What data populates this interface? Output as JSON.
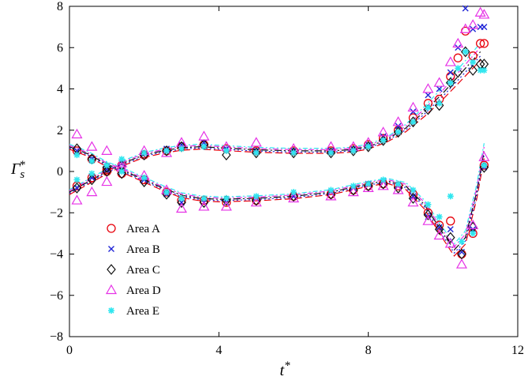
{
  "chart_data": {
    "type": "scatter",
    "title": "",
    "xlabel": "t*",
    "ylabel": "Γs*",
    "xlim": [
      0,
      12
    ],
    "ylim": [
      -8,
      8
    ],
    "xticks": [
      0,
      4,
      8,
      12
    ],
    "yticks": [
      -8,
      -6,
      -4,
      -2,
      0,
      2,
      4,
      6,
      8
    ],
    "grid": false,
    "legend_position": "lower-left",
    "series": [
      {
        "name": "Area A",
        "marker": "circle",
        "color": "#e8000b",
        "upper": [
          [
            0.2,
            -0.7
          ],
          [
            0.6,
            -0.3
          ],
          [
            1.0,
            0.0
          ],
          [
            1.4,
            0.3
          ],
          [
            2.0,
            0.8
          ],
          [
            2.6,
            1.0
          ],
          [
            3.0,
            1.2
          ],
          [
            3.6,
            1.3
          ],
          [
            4.2,
            1.1
          ],
          [
            5.0,
            1.0
          ],
          [
            6.0,
            1.0
          ],
          [
            7.0,
            1.0
          ],
          [
            7.6,
            1.1
          ],
          [
            8.0,
            1.3
          ],
          [
            8.4,
            1.6
          ],
          [
            8.8,
            2.0
          ],
          [
            9.2,
            2.6
          ],
          [
            9.6,
            3.3
          ],
          [
            9.9,
            3.5
          ],
          [
            10.2,
            4.6
          ],
          [
            10.4,
            5.5
          ],
          [
            10.6,
            6.8
          ],
          [
            10.8,
            5.6
          ],
          [
            11.0,
            6.2
          ],
          [
            11.1,
            6.2
          ]
        ],
        "lower": [
          [
            0.2,
            1.0
          ],
          [
            0.6,
            0.6
          ],
          [
            1.0,
            0.1
          ],
          [
            1.4,
            -0.1
          ],
          [
            2.0,
            -0.4
          ],
          [
            2.6,
            -1.0
          ],
          [
            3.0,
            -1.4
          ],
          [
            3.6,
            -1.4
          ],
          [
            4.2,
            -1.5
          ],
          [
            5.0,
            -1.4
          ],
          [
            6.0,
            -1.2
          ],
          [
            7.0,
            -1.1
          ],
          [
            7.6,
            -0.9
          ],
          [
            8.0,
            -0.7
          ],
          [
            8.4,
            -0.6
          ],
          [
            8.8,
            -0.7
          ],
          [
            9.2,
            -1.1
          ],
          [
            9.6,
            -2.0
          ],
          [
            9.9,
            -2.6
          ],
          [
            10.2,
            -2.4
          ],
          [
            10.5,
            -4.0
          ],
          [
            10.8,
            -3.0
          ],
          [
            11.1,
            0.3
          ]
        ]
      },
      {
        "name": "Area B",
        "marker": "x",
        "color": "#1f24d6",
        "upper": [
          [
            0.2,
            -0.8
          ],
          [
            0.6,
            -0.3
          ],
          [
            1.0,
            0.1
          ],
          [
            1.4,
            0.4
          ],
          [
            2.0,
            0.9
          ],
          [
            2.6,
            1.1
          ],
          [
            3.0,
            1.3
          ],
          [
            3.6,
            1.4
          ],
          [
            4.2,
            1.1
          ],
          [
            5.0,
            1.0
          ],
          [
            6.0,
            1.0
          ],
          [
            7.0,
            1.0
          ],
          [
            7.6,
            1.1
          ],
          [
            8.0,
            1.3
          ],
          [
            8.4,
            1.7
          ],
          [
            8.8,
            2.2
          ],
          [
            9.2,
            2.9
          ],
          [
            9.6,
            3.7
          ],
          [
            9.9,
            4.0
          ],
          [
            10.2,
            4.8
          ],
          [
            10.4,
            6.0
          ],
          [
            10.6,
            7.9
          ],
          [
            10.8,
            6.9
          ],
          [
            11.0,
            7.0
          ],
          [
            11.1,
            7.0
          ]
        ],
        "lower": [
          [
            0.2,
            1.0
          ],
          [
            0.6,
            0.6
          ],
          [
            1.0,
            0.2
          ],
          [
            1.4,
            0.0
          ],
          [
            2.0,
            -0.4
          ],
          [
            2.6,
            -1.1
          ],
          [
            3.0,
            -1.5
          ],
          [
            3.6,
            -1.5
          ],
          [
            4.2,
            -1.5
          ],
          [
            5.0,
            -1.3
          ],
          [
            6.0,
            -1.2
          ],
          [
            7.0,
            -1.0
          ],
          [
            7.6,
            -0.8
          ],
          [
            8.0,
            -0.6
          ],
          [
            8.4,
            -0.5
          ],
          [
            8.8,
            -0.7
          ],
          [
            9.2,
            -1.2
          ],
          [
            9.6,
            -2.2
          ],
          [
            9.9,
            -2.7
          ],
          [
            10.2,
            -2.8
          ],
          [
            10.5,
            -3.9
          ],
          [
            10.8,
            -2.8
          ],
          [
            11.1,
            0.2
          ]
        ]
      },
      {
        "name": "Area C",
        "marker": "diamond",
        "color": "#111111",
        "upper": [
          [
            0.2,
            -0.8
          ],
          [
            0.6,
            -0.4
          ],
          [
            1.0,
            0.0
          ],
          [
            1.4,
            0.3
          ],
          [
            2.0,
            0.8
          ],
          [
            2.6,
            1.0
          ],
          [
            3.0,
            1.2
          ],
          [
            3.6,
            1.3
          ],
          [
            4.2,
            0.8
          ],
          [
            5.0,
            0.9
          ],
          [
            6.0,
            0.9
          ],
          [
            7.0,
            0.9
          ],
          [
            7.6,
            1.0
          ],
          [
            8.0,
            1.2
          ],
          [
            8.4,
            1.5
          ],
          [
            8.8,
            1.9
          ],
          [
            9.2,
            2.4
          ],
          [
            9.6,
            3.0
          ],
          [
            9.9,
            3.2
          ],
          [
            10.2,
            4.3
          ],
          [
            10.4,
            4.8
          ],
          [
            10.6,
            5.8
          ],
          [
            10.8,
            4.9
          ],
          [
            11.0,
            5.2
          ],
          [
            11.1,
            5.2
          ]
        ],
        "lower": [
          [
            0.2,
            1.1
          ],
          [
            0.6,
            0.6
          ],
          [
            1.0,
            0.2
          ],
          [
            1.4,
            -0.1
          ],
          [
            2.0,
            -0.5
          ],
          [
            2.6,
            -1.1
          ],
          [
            3.0,
            -1.5
          ],
          [
            3.6,
            -1.5
          ],
          [
            4.2,
            -1.4
          ],
          [
            5.0,
            -1.4
          ],
          [
            6.0,
            -1.2
          ],
          [
            7.0,
            -1.1
          ],
          [
            7.6,
            -0.9
          ],
          [
            8.0,
            -0.7
          ],
          [
            8.4,
            -0.6
          ],
          [
            8.8,
            -0.8
          ],
          [
            9.2,
            -1.3
          ],
          [
            9.6,
            -2.1
          ],
          [
            9.9,
            -2.8
          ],
          [
            10.2,
            -3.2
          ],
          [
            10.5,
            -4.0
          ],
          [
            10.8,
            -2.7
          ],
          [
            11.1,
            0.2
          ]
        ]
      },
      {
        "name": "Area D",
        "marker": "triangle",
        "color": "#e632e6",
        "upper": [
          [
            0.2,
            -1.4
          ],
          [
            0.6,
            -1.0
          ],
          [
            1.0,
            -0.5
          ],
          [
            1.4,
            0.2
          ],
          [
            2.0,
            1.0
          ],
          [
            2.6,
            0.9
          ],
          [
            3.0,
            1.4
          ],
          [
            3.6,
            1.7
          ],
          [
            4.2,
            1.2
          ],
          [
            5.0,
            1.4
          ],
          [
            6.0,
            1.1
          ],
          [
            7.0,
            1.2
          ],
          [
            7.6,
            1.2
          ],
          [
            8.0,
            1.4
          ],
          [
            8.4,
            1.9
          ],
          [
            8.8,
            2.4
          ],
          [
            9.2,
            3.1
          ],
          [
            9.6,
            4.0
          ],
          [
            9.9,
            4.3
          ],
          [
            10.2,
            5.3
          ],
          [
            10.4,
            6.2
          ],
          [
            10.6,
            6.9
          ],
          [
            10.8,
            7.1
          ],
          [
            11.0,
            7.7
          ],
          [
            11.1,
            7.6
          ]
        ],
        "lower": [
          [
            0.2,
            1.8
          ],
          [
            0.6,
            1.2
          ],
          [
            1.0,
            1.0
          ],
          [
            1.4,
            0.4
          ],
          [
            2.0,
            -0.2
          ],
          [
            2.6,
            -0.9
          ],
          [
            3.0,
            -1.8
          ],
          [
            3.6,
            -1.7
          ],
          [
            4.2,
            -1.7
          ],
          [
            5.0,
            -1.5
          ],
          [
            6.0,
            -1.3
          ],
          [
            7.0,
            -1.2
          ],
          [
            7.6,
            -1.0
          ],
          [
            8.0,
            -0.8
          ],
          [
            8.4,
            -0.7
          ],
          [
            8.8,
            -0.9
          ],
          [
            9.2,
            -1.5
          ],
          [
            9.6,
            -2.4
          ],
          [
            9.9,
            -3.1
          ],
          [
            10.2,
            -3.5
          ],
          [
            10.5,
            -4.5
          ],
          [
            10.8,
            -2.6
          ],
          [
            11.1,
            0.7
          ]
        ]
      },
      {
        "name": "Area E",
        "marker": "star",
        "color": "#30e6ef",
        "upper": [
          [
            0.2,
            -0.4
          ],
          [
            0.6,
            -0.1
          ],
          [
            1.0,
            0.3
          ],
          [
            1.4,
            0.6
          ],
          [
            2.0,
            0.9
          ],
          [
            2.6,
            1.0
          ],
          [
            3.0,
            1.1
          ],
          [
            3.6,
            1.2
          ],
          [
            4.2,
            1.0
          ],
          [
            5.0,
            0.9
          ],
          [
            6.0,
            0.9
          ],
          [
            7.0,
            0.9
          ],
          [
            7.6,
            1.0
          ],
          [
            8.0,
            1.2
          ],
          [
            8.4,
            1.5
          ],
          [
            8.8,
            1.9
          ],
          [
            9.2,
            2.4
          ],
          [
            9.6,
            3.1
          ],
          [
            9.9,
            3.3
          ],
          [
            10.2,
            4.3
          ],
          [
            10.4,
            5.0
          ],
          [
            10.6,
            5.8
          ],
          [
            10.8,
            5.3
          ],
          [
            11.0,
            4.9
          ],
          [
            11.1,
            4.9
          ]
        ],
        "lower": [
          [
            0.2,
            0.8
          ],
          [
            0.6,
            0.5
          ],
          [
            1.0,
            0.3
          ],
          [
            1.4,
            0.0
          ],
          [
            2.0,
            -0.3
          ],
          [
            2.6,
            -1.0
          ],
          [
            3.0,
            -1.3
          ],
          [
            3.6,
            -1.3
          ],
          [
            4.2,
            -1.3
          ],
          [
            5.0,
            -1.2
          ],
          [
            6.0,
            -1.0
          ],
          [
            7.0,
            -0.9
          ],
          [
            7.6,
            -0.7
          ],
          [
            8.0,
            -0.6
          ],
          [
            8.4,
            -0.4
          ],
          [
            8.8,
            -0.6
          ],
          [
            9.2,
            -0.9
          ],
          [
            9.6,
            -1.6
          ],
          [
            9.9,
            -2.2
          ],
          [
            10.2,
            -1.2
          ],
          [
            10.5,
            -3.4
          ],
          [
            10.8,
            -3.0
          ],
          [
            11.1,
            0.3
          ]
        ]
      }
    ],
    "fits": {
      "upper": [
        [
          0,
          -1.0
        ],
        [
          0.5,
          -0.5
        ],
        [
          1,
          0.0
        ],
        [
          1.5,
          0.45
        ],
        [
          2,
          0.8
        ],
        [
          2.5,
          1.0
        ],
        [
          3,
          1.15
        ],
        [
          3.5,
          1.2
        ],
        [
          4,
          1.15
        ],
        [
          5,
          1.05
        ],
        [
          6,
          1.0
        ],
        [
          7,
          1.0
        ],
        [
          7.5,
          1.05
        ],
        [
          8,
          1.2
        ],
        [
          8.5,
          1.55
        ],
        [
          9,
          2.1
        ],
        [
          9.5,
          2.9
        ],
        [
          10,
          3.8
        ],
        [
          10.5,
          4.8
        ],
        [
          11,
          5.8
        ]
      ],
      "lower": [
        [
          0,
          1.2
        ],
        [
          0.5,
          0.85
        ],
        [
          1,
          0.35
        ],
        [
          1.5,
          0.0
        ],
        [
          2,
          -0.4
        ],
        [
          2.5,
          -0.8
        ],
        [
          3,
          -1.15
        ],
        [
          3.5,
          -1.3
        ],
        [
          4,
          -1.35
        ],
        [
          5,
          -1.3
        ],
        [
          6,
          -1.2
        ],
        [
          7,
          -1.0
        ],
        [
          8,
          -0.6
        ],
        [
          8.5,
          -0.45
        ],
        [
          9,
          -0.7
        ],
        [
          9.5,
          -1.6
        ],
        [
          10,
          -3.0
        ],
        [
          10.3,
          -3.8
        ],
        [
          10.6,
          -3.2
        ],
        [
          10.9,
          -1.0
        ],
        [
          11.1,
          1.0
        ]
      ]
    }
  }
}
